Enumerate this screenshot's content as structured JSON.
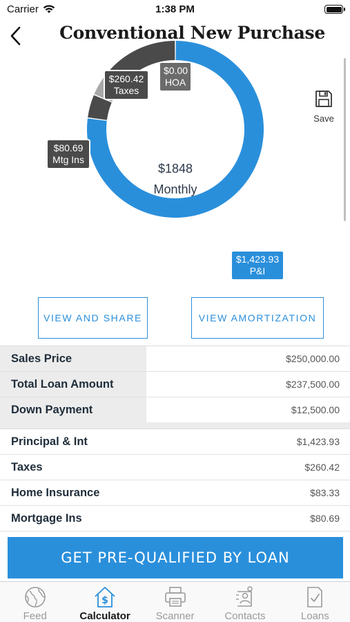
{
  "status_bar": {
    "carrier": "Carrier",
    "time": "1:38 PM"
  },
  "header": {
    "title": "Conventional New Purchase"
  },
  "chart": {
    "center_amount": "$1848",
    "center_label": "Monthly",
    "segments": [
      {
        "name": "P&I",
        "amount": "$1,423.93",
        "value": 1423.93,
        "color": "#2a8fdb"
      },
      {
        "name": "Mtg Ins",
        "amount": "$80.69",
        "value": 80.69,
        "color": "#4a4a4a"
      },
      {
        "name": "Home Insurance",
        "amount": "$83.33",
        "value": 83.33,
        "color": "#a8a8a8"
      },
      {
        "name": "Taxes",
        "amount": "$260.42",
        "value": 260.42,
        "color": "#4a4a4a"
      },
      {
        "name": "HOA",
        "amount": "$0.00",
        "value": 0.0,
        "color": "#6b6b6b"
      }
    ],
    "tags": {
      "taxes": {
        "amount": "$260.42",
        "label": "Taxes"
      },
      "hoa": {
        "amount": "$0.00",
        "label": "HOA"
      },
      "mtg_ins": {
        "amount": "$80.69",
        "label": "Mtg Ins"
      },
      "pi": {
        "amount": "$1,423.93",
        "label": "P&I"
      }
    }
  },
  "save": {
    "label": "Save"
  },
  "actions": {
    "view_share": "VIEW AND SHARE",
    "view_amortization": "VIEW AMORTIZATION"
  },
  "loan_table": [
    {
      "label": "Sales Price",
      "value": "$250,000.00"
    },
    {
      "label": "Total Loan Amount",
      "value": "$237,500.00"
    },
    {
      "label": "Down Payment",
      "value": "$12,500.00"
    }
  ],
  "payment_table": [
    {
      "label": "Principal & Int",
      "value": "$1,423.93"
    },
    {
      "label": "Taxes",
      "value": "$260.42"
    },
    {
      "label": "Home Insurance",
      "value": "$83.33"
    },
    {
      "label": "Mortgage Ins",
      "value": "$80.69"
    }
  ],
  "cta": {
    "label": "GET PRE-QUALIFIED BY LOAN"
  },
  "tabs": [
    {
      "label": "Feed",
      "icon": "globe-icon",
      "active": false
    },
    {
      "label": "Calculator",
      "icon": "house-dollar-icon",
      "active": true
    },
    {
      "label": "Scanner",
      "icon": "printer-icon",
      "active": false
    },
    {
      "label": "Contacts",
      "icon": "contacts-icon",
      "active": false
    },
    {
      "label": "Loans",
      "icon": "document-check-icon",
      "active": false
    }
  ]
}
